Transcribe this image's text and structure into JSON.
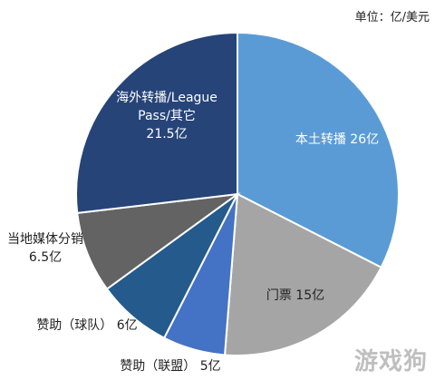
{
  "unit_note": "单位：亿/美元",
  "watermark": "游戏狗",
  "chart_data": {
    "type": "pie",
    "title": "",
    "unit": "亿/美元",
    "slices": [
      {
        "label": "本土转播",
        "value": 26,
        "value_text": "26亿",
        "color": "#5b9bd5"
      },
      {
        "label": "门票",
        "value": 15,
        "value_text": "15亿",
        "color": "#a5a5a5"
      },
      {
        "label": "赞助（联盟）",
        "value": 5,
        "value_text": "5亿",
        "color": "#4472c4"
      },
      {
        "label": "赞助（球队）",
        "value": 6,
        "value_text": "6亿",
        "color": "#245a8c"
      },
      {
        "label": "当地媒体分销",
        "value": 6.5,
        "value_text": "6.5亿",
        "color": "#636363"
      },
      {
        "label": "海外转播/League Pass/其它",
        "value": 21.5,
        "value_text": "21.5亿",
        "color": "#264478"
      }
    ]
  }
}
